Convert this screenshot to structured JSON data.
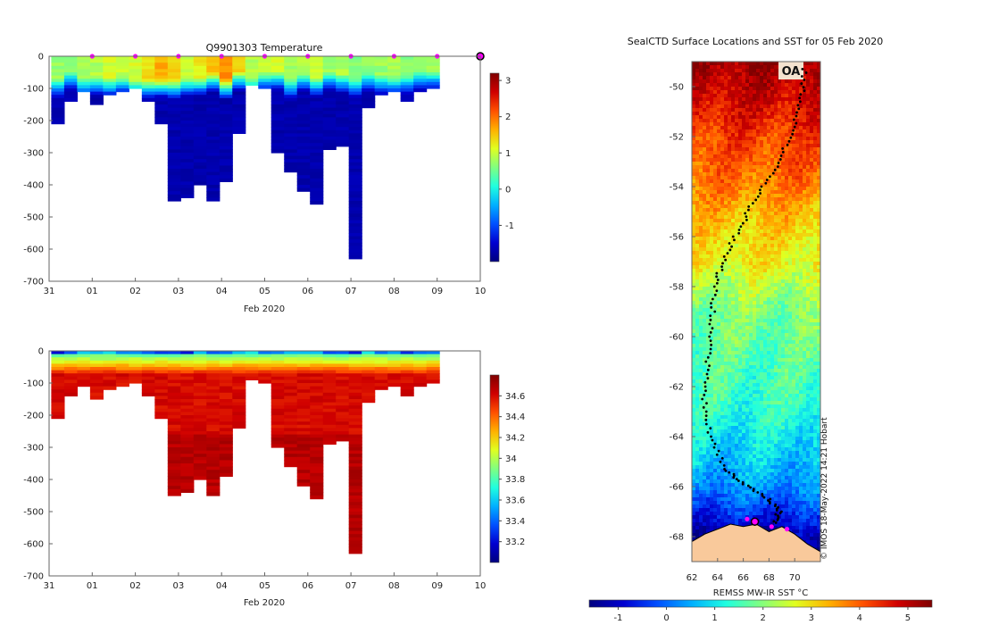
{
  "colors": {
    "jet": [
      "#00007f",
      "#0000d0",
      "#0050ff",
      "#00b0ff",
      "#20ffdf",
      "#80ff80",
      "#e0ff20",
      "#ffb000",
      "#ff5000",
      "#d00000",
      "#7f0000"
    ],
    "land": "#f9c99b",
    "seal_marker": "#ff00ff",
    "track": "#000000"
  },
  "chart_data": [
    {
      "id": "temperature",
      "type": "heatmap",
      "title": "Q9901303  Temperature",
      "xlabel": "Feb 2020",
      "ylabel": "",
      "xlim": [
        31,
        41
      ],
      "ylim": [
        -700,
        0
      ],
      "x_ticks": [
        "31",
        "01",
        "02",
        "03",
        "04",
        "05",
        "06",
        "07",
        "08",
        "09",
        "10"
      ],
      "y_ticks": [
        "0",
        "-100",
        "-200",
        "-300",
        "-400",
        "-500",
        "-600",
        "-700"
      ],
      "colorbar": {
        "min": -2,
        "max": 3.2,
        "ticks": [
          "-1",
          "0",
          "1",
          "2",
          "3"
        ],
        "tick_values": [
          -1,
          0,
          1,
          2,
          3
        ]
      },
      "profile_days": [
        31.2,
        31.5,
        31.8,
        32.1,
        32.4,
        32.7,
        33.0,
        33.3,
        33.6,
        33.9,
        34.2,
        34.5,
        34.8,
        35.1,
        35.4,
        35.7,
        36.0,
        36.3,
        36.6,
        36.9,
        37.2,
        37.5,
        37.8,
        38.1,
        38.4,
        38.7,
        39.0,
        39.3,
        39.6,
        39.9
      ],
      "profile_depths": [
        210,
        140,
        110,
        150,
        120,
        110,
        100,
        140,
        210,
        450,
        440,
        400,
        450,
        390,
        240,
        90,
        100,
        300,
        360,
        420,
        460,
        290,
        280,
        630,
        160,
        120,
        110,
        140,
        110,
        100
      ],
      "surface_temp": [
        0.6,
        0.5,
        0.6,
        0.7,
        0.9,
        0.8,
        0.9,
        1.2,
        1.5,
        1.3,
        0.9,
        1.1,
        1.4,
        1.7,
        1.2,
        0.7,
        0.8,
        0.9,
        0.6,
        0.7,
        0.8,
        0.6,
        0.7,
        0.5,
        0.5,
        0.6,
        0.7,
        0.5,
        0.6,
        0.6
      ],
      "deep_temp": -1.8,
      "markers": [
        "01",
        "02",
        "03",
        "04",
        "05",
        "06",
        "07",
        "08",
        "09",
        "10"
      ]
    },
    {
      "id": "salinity",
      "type": "heatmap",
      "title": "",
      "xlabel": "Feb 2020",
      "ylabel": "",
      "xlim": [
        31,
        41
      ],
      "ylim": [
        -700,
        0
      ],
      "x_ticks": [
        "31",
        "01",
        "02",
        "03",
        "04",
        "05",
        "06",
        "07",
        "08",
        "09",
        "10"
      ],
      "y_ticks": [
        "0",
        "-100",
        "-200",
        "-300",
        "-400",
        "-500",
        "-600",
        "-700"
      ],
      "colorbar": {
        "min": 33.0,
        "max": 34.8,
        "ticks": [
          "33.2",
          "33.4",
          "33.6",
          "33.8",
          "34",
          "34.2",
          "34.4",
          "34.6"
        ],
        "tick_values": [
          33.2,
          33.4,
          33.6,
          33.8,
          34.0,
          34.2,
          34.4,
          34.6
        ]
      },
      "surface_sal": 33.9,
      "deep_sal": 34.55
    },
    {
      "id": "sst_map",
      "type": "heatmap",
      "title": "SealCTD Surface Locations and SST for 05 Feb 2020",
      "xlabel": "",
      "ylabel": "",
      "xlim": [
        62,
        72
      ],
      "ylim": [
        -69,
        -49
      ],
      "x_ticks": [
        "62",
        "64",
        "66",
        "68",
        "70"
      ],
      "y_ticks": [
        "-50",
        "-52",
        "-54",
        "-56",
        "-58",
        "-60",
        "-62",
        "-64",
        "-66",
        "-68"
      ],
      "colorbar_label": "REMSS MW-IR SST °C",
      "colorbar": {
        "min": -1.6,
        "max": 5.5,
        "ticks": [
          "-1",
          "0",
          "1",
          "2",
          "3",
          "4",
          "5"
        ],
        "tick_values": [
          -1,
          0,
          1,
          2,
          3,
          4,
          5
        ]
      },
      "sst_by_latitude": [
        [
          -49,
          5.2
        ],
        [
          -50,
          4.9
        ],
        [
          -51,
          4.6
        ],
        [
          -52,
          4.2
        ],
        [
          -53,
          4.0
        ],
        [
          -54,
          3.7
        ],
        [
          -55,
          3.3
        ],
        [
          -56,
          3.0
        ],
        [
          -57,
          2.8
        ],
        [
          -58,
          2.3
        ],
        [
          -59,
          1.9
        ],
        [
          -60,
          1.8
        ],
        [
          -61,
          1.6
        ],
        [
          -62,
          1.5
        ],
        [
          -63,
          1.3
        ],
        [
          -64,
          1.0
        ],
        [
          -65,
          0.7
        ],
        [
          -66,
          0.3
        ],
        [
          -67,
          -0.5
        ],
        [
          -68,
          -1.3
        ],
        [
          -69,
          -1.5
        ]
      ],
      "track_waypoints": [
        [
          70.8,
          -49.3
        ],
        [
          70.5,
          -50.6
        ],
        [
          69.7,
          -51.9
        ],
        [
          68.6,
          -53.2
        ],
        [
          67.0,
          -54.4
        ],
        [
          65.8,
          -55.6
        ],
        [
          64.5,
          -56.8
        ],
        [
          63.8,
          -58.0
        ],
        [
          63.5,
          -59.5
        ],
        [
          63.2,
          -61.0
        ],
        [
          63.0,
          -62.5
        ],
        [
          63.4,
          -64.0
        ],
        [
          64.6,
          -65.3
        ],
        [
          66.0,
          -65.9
        ],
        [
          68.0,
          -66.5
        ],
        [
          68.8,
          -67.0
        ],
        [
          68.4,
          -67.5
        ]
      ],
      "seal_positions": [
        [
          66.3,
          -67.3
        ],
        [
          66.9,
          -67.4
        ],
        [
          68.2,
          -67.6
        ],
        [
          69.4,
          -67.7
        ]
      ],
      "start_label": "OA",
      "credit": "© IMOS 18-May-2022 14:21 Hobart"
    }
  ]
}
